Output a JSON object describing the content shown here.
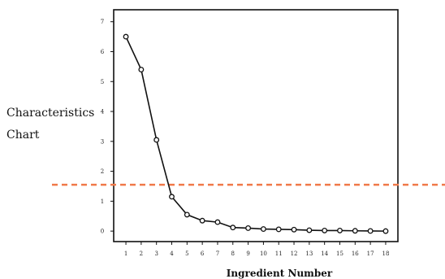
{
  "chart_data": {
    "type": "line",
    "ylabel_lines": [
      "Characteristics",
      "Chart"
    ],
    "xlabel": "Ingredient Number",
    "x": [
      1,
      2,
      3,
      4,
      5,
      6,
      7,
      8,
      9,
      10,
      11,
      12,
      13,
      14,
      15,
      16,
      17,
      18
    ],
    "series": [
      {
        "values": [
          6.5,
          5.4,
          3.05,
          1.15,
          0.55,
          0.35,
          0.3,
          0.12,
          0.1,
          0.07,
          0.06,
          0.05,
          0.03,
          0.02,
          0.02,
          0.01,
          0.005,
          0.0
        ]
      }
    ],
    "yticks": [
      0,
      1,
      2,
      3,
      4,
      5,
      6,
      7
    ],
    "ylim": [
      -0.35,
      7.4
    ],
    "xlim": [
      0.2,
      18.8
    ],
    "reference_line": {
      "y": 1.55,
      "style": "dashed",
      "color": "#f07a4a"
    },
    "line_color": "#111111",
    "marker": "open-circle",
    "grid": false
  }
}
